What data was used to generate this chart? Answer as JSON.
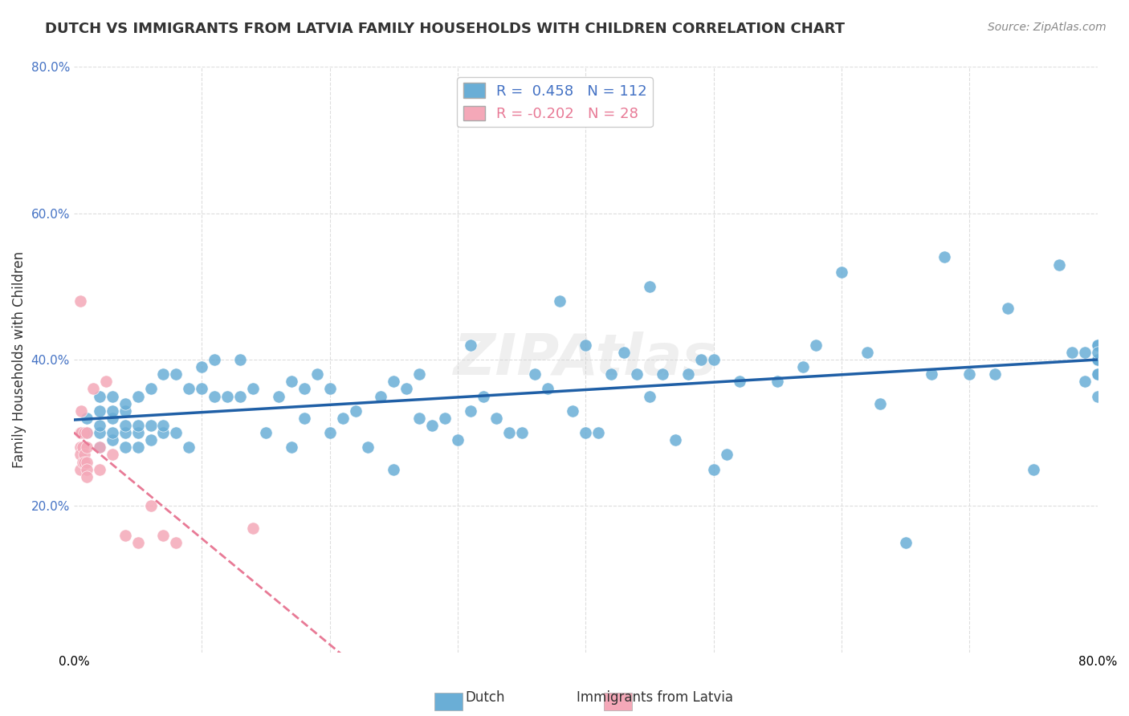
{
  "title": "DUTCH VS IMMIGRANTS FROM LATVIA FAMILY HOUSEHOLDS WITH CHILDREN CORRELATION CHART",
  "source": "Source: ZipAtlas.com",
  "xlabel": "",
  "ylabel": "Family Households with Children",
  "xlim": [
    0.0,
    0.8
  ],
  "ylim": [
    0.0,
    0.8
  ],
  "xticks": [
    0.0,
    0.1,
    0.2,
    0.3,
    0.4,
    0.5,
    0.6,
    0.7,
    0.8
  ],
  "yticks": [
    0.0,
    0.2,
    0.4,
    0.6,
    0.8
  ],
  "xticklabels": [
    "0.0%",
    "",
    "",
    "",
    "",
    "",
    "",
    "",
    "80.0%"
  ],
  "yticklabels": [
    "",
    "20.0%",
    "40.0%",
    "60.0%",
    "80.0%"
  ],
  "legend_labels": [
    "Dutch",
    "Immigrants from Latvia"
  ],
  "dutch_R": 0.458,
  "dutch_N": 112,
  "latvian_R": -0.202,
  "latvian_N": 28,
  "dutch_color": "#6aaed6",
  "latvian_color": "#f4a8b8",
  "dutch_line_color": "#1f5fa6",
  "latvian_line_color": "#e87a96",
  "watermark": "ZIPAtlas",
  "background_color": "#ffffff",
  "grid_color": "#dddddd",
  "dutch_scatter_x": [
    0.01,
    0.01,
    0.02,
    0.02,
    0.02,
    0.02,
    0.02,
    0.03,
    0.03,
    0.03,
    0.03,
    0.03,
    0.04,
    0.04,
    0.04,
    0.04,
    0.04,
    0.05,
    0.05,
    0.05,
    0.05,
    0.06,
    0.06,
    0.06,
    0.07,
    0.07,
    0.07,
    0.08,
    0.08,
    0.09,
    0.09,
    0.1,
    0.1,
    0.11,
    0.11,
    0.12,
    0.13,
    0.13,
    0.14,
    0.15,
    0.16,
    0.17,
    0.17,
    0.18,
    0.18,
    0.19,
    0.2,
    0.2,
    0.21,
    0.22,
    0.23,
    0.24,
    0.25,
    0.25,
    0.26,
    0.27,
    0.27,
    0.28,
    0.29,
    0.3,
    0.31,
    0.31,
    0.32,
    0.33,
    0.34,
    0.35,
    0.36,
    0.37,
    0.38,
    0.39,
    0.4,
    0.4,
    0.41,
    0.42,
    0.43,
    0.44,
    0.45,
    0.45,
    0.46,
    0.47,
    0.48,
    0.49,
    0.5,
    0.5,
    0.51,
    0.52,
    0.55,
    0.57,
    0.58,
    0.6,
    0.62,
    0.63,
    0.65,
    0.67,
    0.68,
    0.7,
    0.72,
    0.73,
    0.75,
    0.77,
    0.78,
    0.79,
    0.79,
    0.8,
    0.8,
    0.8,
    0.8,
    0.8,
    0.8,
    0.8,
    0.8,
    0.8
  ],
  "dutch_scatter_y": [
    0.3,
    0.32,
    0.28,
    0.3,
    0.31,
    0.33,
    0.35,
    0.29,
    0.3,
    0.32,
    0.33,
    0.35,
    0.28,
    0.3,
    0.31,
    0.33,
    0.34,
    0.28,
    0.3,
    0.31,
    0.35,
    0.29,
    0.31,
    0.36,
    0.3,
    0.31,
    0.38,
    0.3,
    0.38,
    0.28,
    0.36,
    0.36,
    0.39,
    0.35,
    0.4,
    0.35,
    0.35,
    0.4,
    0.36,
    0.3,
    0.35,
    0.28,
    0.37,
    0.32,
    0.36,
    0.38,
    0.3,
    0.36,
    0.32,
    0.33,
    0.28,
    0.35,
    0.25,
    0.37,
    0.36,
    0.32,
    0.38,
    0.31,
    0.32,
    0.29,
    0.33,
    0.42,
    0.35,
    0.32,
    0.3,
    0.3,
    0.38,
    0.36,
    0.48,
    0.33,
    0.3,
    0.42,
    0.3,
    0.38,
    0.41,
    0.38,
    0.35,
    0.5,
    0.38,
    0.29,
    0.38,
    0.4,
    0.25,
    0.4,
    0.27,
    0.37,
    0.37,
    0.39,
    0.42,
    0.52,
    0.41,
    0.34,
    0.15,
    0.38,
    0.54,
    0.38,
    0.38,
    0.47,
    0.25,
    0.53,
    0.41,
    0.37,
    0.41,
    0.38,
    0.4,
    0.42,
    0.35,
    0.38,
    0.42,
    0.4,
    0.4,
    0.41
  ],
  "latvian_scatter_x": [
    0.005,
    0.005,
    0.005,
    0.005,
    0.005,
    0.006,
    0.006,
    0.007,
    0.007,
    0.008,
    0.008,
    0.008,
    0.01,
    0.01,
    0.01,
    0.01,
    0.01,
    0.015,
    0.02,
    0.02,
    0.025,
    0.03,
    0.04,
    0.05,
    0.06,
    0.07,
    0.08,
    0.14
  ],
  "latvian_scatter_y": [
    0.48,
    0.3,
    0.28,
    0.27,
    0.25,
    0.33,
    0.3,
    0.28,
    0.26,
    0.3,
    0.27,
    0.26,
    0.3,
    0.28,
    0.26,
    0.25,
    0.24,
    0.36,
    0.28,
    0.25,
    0.37,
    0.27,
    0.16,
    0.15,
    0.2,
    0.16,
    0.15,
    0.17
  ]
}
